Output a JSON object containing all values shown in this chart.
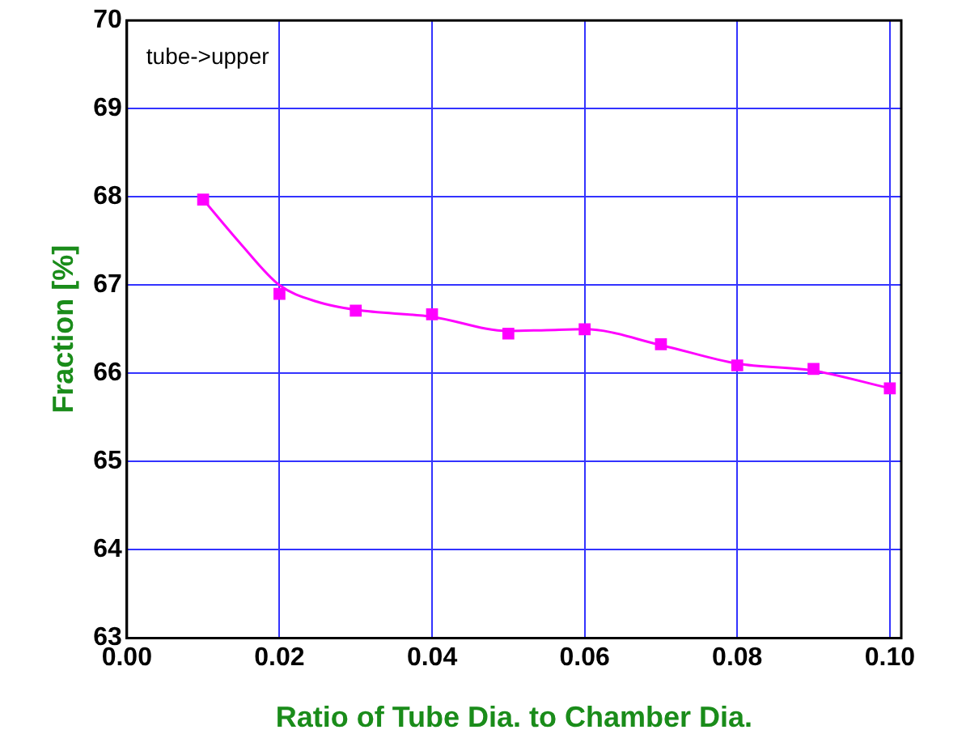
{
  "chart_data": {
    "type": "scatter",
    "xlabel": "Ratio of Tube Dia. to Chamber Dia.",
    "ylabel": "Fraction [%]",
    "annotations": [
      "tube->upper"
    ],
    "xlim": [
      0,
      0.1015
    ],
    "xticks": [
      {
        "value": 0,
        "label": "0.00"
      },
      {
        "value": 0.02,
        "label": "0.02"
      },
      {
        "value": 0.04,
        "label": "0.04"
      },
      {
        "value": 0.06,
        "label": "0.06"
      },
      {
        "value": 0.08,
        "label": "0.08"
      },
      {
        "value": 0.1,
        "label": "0.10"
      }
    ],
    "ylim": [
      63,
      70
    ],
    "yticks": [
      63,
      64,
      65,
      66,
      67,
      68,
      69,
      70
    ],
    "grid": true,
    "series": [
      {
        "type": "line",
        "color": "#ff00ff",
        "marker": "none",
        "line_style": "solid",
        "x": [
          0.01,
          0.015,
          0.02,
          0.025,
          0.03,
          0.04,
          0.05,
          0.055,
          0.06,
          0.07,
          0.08,
          0.09,
          0.1
        ],
        "values": [
          67.97,
          67.46,
          67.0,
          66.81,
          66.72,
          66.64,
          66.48,
          66.49,
          66.5,
          66.32,
          66.11,
          66.03,
          65.83
        ]
      },
      {
        "color": "#ff00ff",
        "marker": "square",
        "x": [
          0.01,
          0.02,
          0.03,
          0.04,
          0.05,
          0.06,
          0.07,
          0.08,
          0.09,
          0.1
        ],
        "values": [
          67.97,
          66.9,
          66.71,
          66.67,
          66.45,
          66.5,
          66.33,
          66.09,
          66.05,
          65.83
        ]
      }
    ]
  }
}
